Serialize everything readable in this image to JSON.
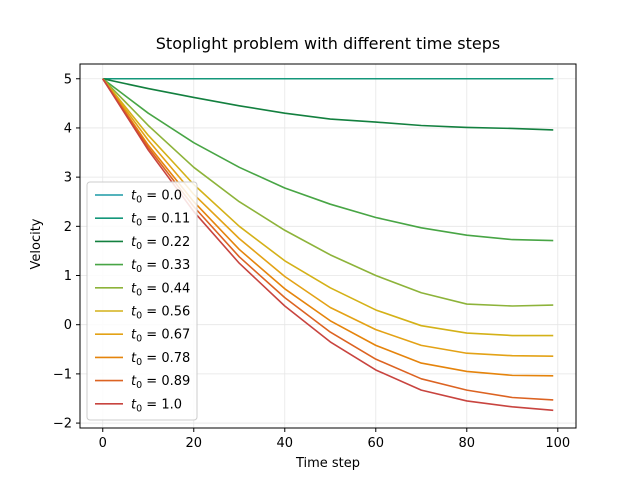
{
  "chart_data": {
    "type": "line",
    "title": "Stoplight problem with different time steps",
    "xlabel": "Time step",
    "ylabel": "Velocity",
    "xlim": [
      -5,
      104
    ],
    "ylim": [
      -2.1,
      5.3
    ],
    "xticks": [
      0,
      20,
      40,
      60,
      80,
      100
    ],
    "yticks": [
      -2,
      -1,
      0,
      1,
      2,
      3,
      4,
      5
    ],
    "grid": true,
    "legend_position": "lower-left",
    "x": [
      0,
      10,
      20,
      30,
      40,
      50,
      60,
      70,
      80,
      90,
      99
    ],
    "series": [
      {
        "name": "t0 = 0.0",
        "legend_sub": "0",
        "legend_value": "0.0",
        "color": "#1b9aa6",
        "values": [
          5.0,
          5.0,
          5.0,
          5.0,
          5.0,
          5.0,
          5.0,
          5.0,
          5.0,
          5.0,
          5.0
        ]
      },
      {
        "name": "t0 = 0.11",
        "legend_sub": "0",
        "legend_value": "0.11",
        "color": "#14977a",
        "values": [
          5.0,
          5.0,
          5.0,
          5.0,
          5.0,
          5.0,
          5.0,
          5.0,
          5.0,
          5.0,
          5.0
        ]
      },
      {
        "name": "t0 = 0.22",
        "legend_sub": "0",
        "legend_value": "0.22",
        "color": "#13803f",
        "values": [
          5.0,
          4.8,
          4.62,
          4.45,
          4.3,
          4.18,
          4.12,
          4.05,
          4.01,
          3.99,
          3.96
        ]
      },
      {
        "name": "t0 = 0.33",
        "legend_sub": "0",
        "legend_value": "0.33",
        "color": "#48a545",
        "values": [
          5.0,
          4.3,
          3.7,
          3.2,
          2.78,
          2.45,
          2.18,
          1.97,
          1.82,
          1.73,
          1.71
        ]
      },
      {
        "name": "t0 = 0.44",
        "legend_sub": "0",
        "legend_value": "0.44",
        "color": "#8db33a",
        "values": [
          5.0,
          4.05,
          3.2,
          2.5,
          1.92,
          1.42,
          1.0,
          0.65,
          0.42,
          0.38,
          0.4
        ]
      },
      {
        "name": "t0 = 0.56",
        "legend_sub": "0",
        "legend_value": "0.56",
        "color": "#d4b118",
        "values": [
          5.0,
          3.85,
          2.85,
          2.0,
          1.3,
          0.75,
          0.3,
          -0.02,
          -0.17,
          -0.22,
          -0.22
        ]
      },
      {
        "name": "t0 = 0.67",
        "legend_sub": "0",
        "legend_value": "0.67",
        "color": "#e3a216",
        "values": [
          5.0,
          3.75,
          2.65,
          1.75,
          0.98,
          0.35,
          -0.1,
          -0.42,
          -0.58,
          -0.63,
          -0.64
        ]
      },
      {
        "name": "t0 = 0.78",
        "legend_sub": "0",
        "legend_value": "0.78",
        "color": "#e5840c",
        "values": [
          5.0,
          3.65,
          2.5,
          1.53,
          0.73,
          0.08,
          -0.42,
          -0.78,
          -0.95,
          -1.03,
          -1.04
        ]
      },
      {
        "name": "t0 = 0.89",
        "legend_sub": "0",
        "legend_value": "0.89",
        "color": "#dc6322",
        "values": [
          5.0,
          3.6,
          2.4,
          1.38,
          0.55,
          -0.15,
          -0.7,
          -1.1,
          -1.33,
          -1.48,
          -1.53
        ]
      },
      {
        "name": "t0 = 1.0",
        "legend_sub": "0",
        "legend_value": "1.0",
        "color": "#c8443f",
        "values": [
          5.0,
          3.55,
          2.3,
          1.25,
          0.38,
          -0.35,
          -0.92,
          -1.33,
          -1.55,
          -1.67,
          -1.74
        ]
      }
    ]
  }
}
